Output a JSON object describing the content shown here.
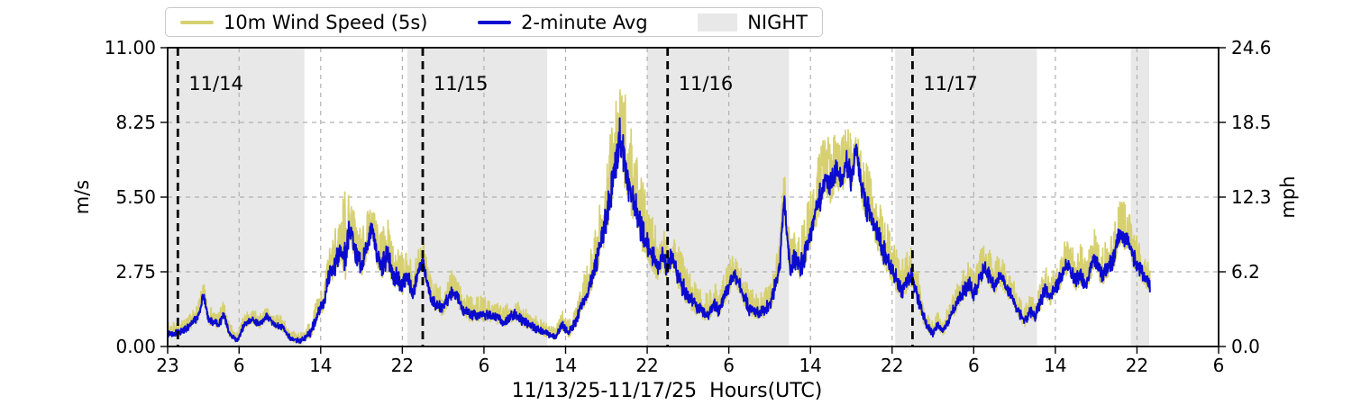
{
  "chart_data": {
    "type": "line",
    "title": "",
    "xlabel": "11/13/25-11/17/25  Hours(UTC)",
    "ylabel_left": "m/s",
    "ylabel_right": "mph",
    "ylim_left": [
      0,
      11
    ],
    "ylim_right": [
      0,
      24.6
    ],
    "x_hours_range": [
      0,
      103
    ],
    "x_origin": "23:00 UTC on 11/13/25",
    "xticks": {
      "t": [
        0,
        7,
        15,
        23,
        31,
        39,
        47,
        55,
        63,
        71,
        79,
        87,
        95,
        103
      ],
      "labels": [
        "23",
        "6",
        "14",
        "22",
        "6",
        "14",
        "22",
        "6",
        "14",
        "22",
        "6",
        "14",
        "22",
        "6"
      ]
    },
    "yticks_left": {
      "values": [
        0,
        2.75,
        5.5,
        8.25,
        11
      ],
      "labels": [
        "0.00",
        "2.75",
        "5.50",
        "8.25",
        "11.00"
      ]
    },
    "yticks_right": {
      "values": [
        0,
        2.75,
        5.5,
        8.25,
        11
      ],
      "labels": [
        "0.0",
        "6.2",
        "12.3",
        "18.5",
        "24.6"
      ]
    },
    "grid_y_values": [
      2.75,
      5.5,
      8.25
    ],
    "night_bands_t": [
      [
        0,
        13.4
      ],
      [
        23.5,
        37.2
      ],
      [
        47.0,
        60.9
      ],
      [
        71.3,
        85.2
      ],
      [
        94.4,
        96.2
      ]
    ],
    "day_boundaries": [
      {
        "t": 1,
        "label": "11/14"
      },
      {
        "t": 25,
        "label": "11/15"
      },
      {
        "t": 49,
        "label": "11/16"
      },
      {
        "t": 73,
        "label": "11/17"
      }
    ],
    "legend_labels": [
      "10m Wind Speed (5s)",
      "2-minute Avg",
      "NIGHT"
    ],
    "colors": {
      "gust": "#d6d071",
      "avg": "#0b0bd0",
      "night": "#e8e8e8",
      "grid": "#b0b0b0",
      "day_line": "#000000",
      "day_label": "#595959",
      "axis": "#000000"
    },
    "series": [
      {
        "name": "10m Wind Speed (5s)",
        "role": "gust-envelope-m/s",
        "color": "#d6d071",
        "keyframes_t": [
          0,
          1,
          2,
          3,
          3.5,
          4,
          5,
          5.5,
          6,
          6.8,
          7.5,
          8.3,
          9,
          9.7,
          10.5,
          11.3,
          12,
          13,
          14,
          14.8,
          15.3,
          15.8,
          16.3,
          17,
          17.4,
          17.8,
          18.5,
          19,
          19.5,
          20,
          20.5,
          21,
          21.5,
          22,
          22.5,
          23,
          23.5,
          24,
          24.5,
          25,
          25.5,
          26,
          27,
          28,
          28.5,
          29,
          30,
          31,
          32,
          33,
          34,
          35,
          36,
          37,
          38,
          38.7,
          39.3,
          40,
          40.5,
          41,
          41.5,
          42,
          42.5,
          43,
          43.5,
          44,
          44.3,
          44.7,
          45,
          45.5,
          46,
          46.5,
          47,
          47.5,
          48,
          48.5,
          49,
          49.5,
          50,
          50.5,
          51,
          52,
          53,
          53.5,
          54,
          54.5,
          55,
          55.5,
          56,
          56.5,
          57,
          58,
          59,
          59.5,
          60,
          60.4,
          61,
          61.5,
          62,
          62.5,
          63,
          63.5,
          64,
          64.5,
          65,
          65.5,
          66,
          66.5,
          67,
          67.5,
          68,
          68.5,
          69,
          69.5,
          70,
          70.5,
          71,
          71.5,
          72,
          72.5,
          73,
          73.5,
          74,
          74.5,
          75,
          75.5,
          76,
          76.5,
          77,
          77.5,
          78,
          78.5,
          79,
          79.5,
          80,
          80.5,
          81,
          81.6,
          82,
          82.5,
          83,
          83.5,
          84,
          84.5,
          85,
          85.5,
          86,
          86.5,
          87,
          87.5,
          88.3,
          89,
          89.5,
          90,
          90.8,
          91.5,
          92,
          92.7,
          93.4,
          94,
          94.5,
          95,
          95.5,
          96,
          96.3
        ],
        "values": [
          0.9,
          0.9,
          1.1,
          1.6,
          2.4,
          1.5,
          1.3,
          1.7,
          0.9,
          0.5,
          1.2,
          1.4,
          1.2,
          1.5,
          1.2,
          1.1,
          0.6,
          0.45,
          1.0,
          2.0,
          2.3,
          3.6,
          4.2,
          5.0,
          6.1,
          5.6,
          4.8,
          4.3,
          4.9,
          5.3,
          4.6,
          4.4,
          4.8,
          4.2,
          3.8,
          3.4,
          3.6,
          3.0,
          3.5,
          4.0,
          3.0,
          2.4,
          2.2,
          2.9,
          2.5,
          2.0,
          1.8,
          1.9,
          1.7,
          1.5,
          1.8,
          1.5,
          1.2,
          0.9,
          0.7,
          1.3,
          1.0,
          1.5,
          2.2,
          2.9,
          3.6,
          4.5,
          5.6,
          6.9,
          8.2,
          9.3,
          10.4,
          9.6,
          8.9,
          8.0,
          7.0,
          6.2,
          5.4,
          4.8,
          4.3,
          4.6,
          4.2,
          4.7,
          3.8,
          3.3,
          2.8,
          2.3,
          2.0,
          2.4,
          2.1,
          2.7,
          3.1,
          3.6,
          3.2,
          2.7,
          2.2,
          1.9,
          2.4,
          3.2,
          4.2,
          6.6,
          4.0,
          4.6,
          4.3,
          5.0,
          5.8,
          6.6,
          7.4,
          7.8,
          7.6,
          8.0,
          7.7,
          8.3,
          7.8,
          8.2,
          7.4,
          6.9,
          6.3,
          5.8,
          5.2,
          4.6,
          4.1,
          3.6,
          3.2,
          3.5,
          3.7,
          2.9,
          2.0,
          1.3,
          1.0,
          1.4,
          1.1,
          1.5,
          2.0,
          2.5,
          2.9,
          3.3,
          2.8,
          3.4,
          3.9,
          3.6,
          3.1,
          3.6,
          3.2,
          2.9,
          2.4,
          1.9,
          1.5,
          2.0,
          1.7,
          2.4,
          3.0,
          2.6,
          3.1,
          3.5,
          4.2,
          3.4,
          3.8,
          3.2,
          4.4,
          3.6,
          3.9,
          4.4,
          5.5,
          5.2,
          4.7,
          4.1,
          3.7,
          3.2,
          3.0
        ]
      },
      {
        "name": "2-minute Avg",
        "role": "2-minute-average-m/s",
        "color": "#0b0bd0",
        "keyframes_t": [
          0,
          1,
          2,
          3,
          3.5,
          4,
          5,
          5.5,
          6,
          6.8,
          7.5,
          8.3,
          9,
          9.7,
          10.5,
          11.3,
          12,
          13,
          14,
          14.8,
          15.3,
          15.8,
          16.3,
          17,
          17.4,
          17.8,
          18.5,
          19,
          19.5,
          20,
          20.5,
          21,
          21.5,
          22,
          22.5,
          23,
          23.5,
          24,
          24.5,
          25,
          25.5,
          26,
          27,
          28,
          28.5,
          29,
          30,
          31,
          32,
          33,
          34,
          35,
          36,
          37,
          38,
          38.7,
          39.3,
          40,
          40.5,
          41,
          41.5,
          42,
          42.5,
          43,
          43.5,
          44,
          44.3,
          44.7,
          45,
          45.5,
          46,
          46.5,
          47,
          47.5,
          48,
          48.5,
          49,
          49.5,
          50,
          50.5,
          51,
          52,
          53,
          53.5,
          54,
          54.5,
          55,
          55.5,
          56,
          56.5,
          57,
          58,
          59,
          59.5,
          60,
          60.4,
          61,
          61.5,
          62,
          62.5,
          63,
          63.5,
          64,
          64.5,
          65,
          65.5,
          66,
          66.5,
          67,
          67.5,
          68,
          68.5,
          69,
          69.5,
          70,
          70.5,
          71,
          71.5,
          72,
          72.5,
          73,
          73.5,
          74,
          74.5,
          75,
          75.5,
          76,
          76.5,
          77,
          77.5,
          78,
          78.5,
          79,
          79.5,
          80,
          80.5,
          81,
          81.6,
          82,
          82.5,
          83,
          83.5,
          84,
          84.5,
          85,
          85.5,
          86,
          86.5,
          87,
          87.5,
          88.3,
          89,
          89.5,
          90,
          90.8,
          91.5,
          92,
          92.7,
          93.4,
          94,
          94.5,
          95,
          95.5,
          96,
          96.3
        ],
        "values": [
          0.5,
          0.5,
          0.7,
          1.1,
          1.9,
          1.0,
          0.8,
          1.2,
          0.5,
          0.2,
          0.8,
          1.0,
          0.8,
          1.1,
          0.8,
          0.7,
          0.3,
          0.2,
          0.5,
          1.3,
          1.6,
          2.6,
          2.9,
          3.6,
          3.3,
          4.4,
          3.4,
          3.0,
          3.6,
          4.4,
          3.4,
          3.0,
          3.3,
          2.8,
          2.5,
          2.3,
          2.6,
          2.0,
          2.6,
          3.2,
          2.2,
          1.6,
          1.4,
          2.1,
          1.7,
          1.3,
          1.1,
          1.2,
          1.1,
          0.9,
          1.2,
          0.9,
          0.7,
          0.5,
          0.35,
          0.8,
          0.5,
          0.9,
          1.5,
          1.9,
          2.4,
          3.1,
          3.9,
          4.8,
          5.8,
          6.8,
          7.7,
          6.9,
          6.3,
          5.6,
          4.8,
          4.2,
          3.8,
          3.3,
          2.9,
          3.3,
          2.9,
          3.4,
          2.6,
          2.2,
          1.8,
          1.4,
          1.2,
          1.6,
          1.3,
          1.8,
          2.2,
          2.7,
          2.3,
          1.8,
          1.4,
          1.2,
          1.5,
          2.2,
          3.0,
          5.5,
          2.8,
          3.3,
          2.9,
          3.5,
          4.2,
          4.9,
          5.6,
          6.2,
          5.8,
          6.5,
          6.0,
          6.8,
          6.2,
          7.3,
          5.8,
          5.2,
          4.7,
          4.2,
          3.7,
          3.2,
          2.8,
          2.4,
          2.1,
          2.4,
          2.6,
          1.9,
          1.2,
          0.7,
          0.5,
          0.8,
          0.6,
          0.9,
          1.3,
          1.7,
          2.0,
          2.3,
          1.9,
          2.4,
          2.9,
          2.6,
          2.2,
          2.6,
          2.3,
          2.0,
          1.6,
          1.2,
          0.9,
          1.3,
          1.1,
          1.6,
          2.1,
          1.8,
          2.2,
          2.5,
          3.1,
          2.4,
          2.7,
          2.2,
          3.3,
          2.6,
          2.8,
          3.2,
          4.2,
          3.9,
          3.5,
          3.0,
          2.7,
          2.4,
          2.2
        ]
      }
    ]
  }
}
